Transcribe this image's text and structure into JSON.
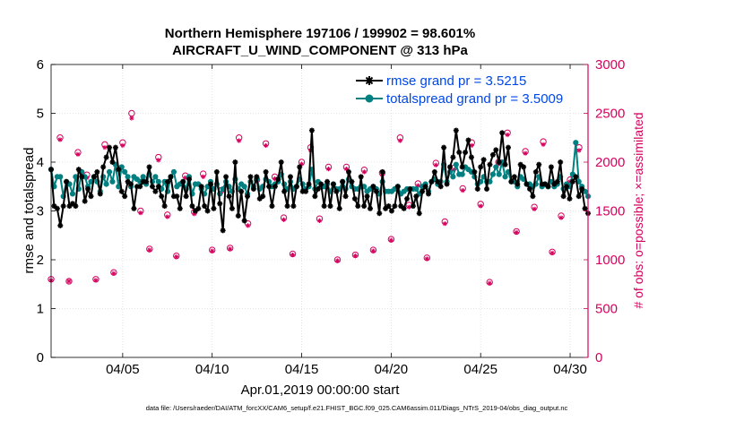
{
  "chart_data": {
    "type": "line",
    "title": "Northern Hemisphere 197106 / 199902 = 98.601%",
    "subtitle": "AIRCRAFT_U_WIND_COMPONENT @ 313 hPa",
    "xlabel": "Apr.01,2019 00:00:00 start",
    "ylabel": "rmse and totalspread",
    "y2label": "# of obs: o=possible; ×=assimilated",
    "footer": "data file: /Users/raeder/DAI/ATM_forcXX/CAM6_setup/f.e21.FHIST_BGC.f09_025.CAM6assim.011/Diags_NTrS_2019-04/obs_diag_output.nc",
    "xlim": [
      1,
      31
    ],
    "ylim": [
      0,
      6
    ],
    "y2lim": [
      0,
      3000
    ],
    "xticks": [
      5,
      10,
      15,
      20,
      25,
      30
    ],
    "xtick_labels": [
      "04/05",
      "04/10",
      "04/15",
      "04/20",
      "04/25",
      "04/30"
    ],
    "yticks": [
      0,
      1,
      2,
      3,
      4,
      5,
      6
    ],
    "ytick_labels": [
      "0",
      "1",
      "2",
      "3",
      "4",
      "5",
      "6"
    ],
    "y2ticks": [
      0,
      500,
      1000,
      1500,
      2000,
      2500,
      3000
    ],
    "y2tick_labels": [
      "0",
      "500",
      "1000",
      "1500",
      "2000",
      "2500",
      "3000"
    ],
    "grid": true,
    "legend_position": "top-right",
    "series": [
      {
        "name": "rmse grand pr = 3.5215",
        "color": "#000000",
        "marker": "asterisk",
        "values": [
          3.85,
          3.1,
          3.05,
          2.7,
          3.1,
          3.6,
          3.1,
          3.15,
          3.1,
          3.85,
          3.7,
          3.2,
          3.45,
          3.3,
          3.7,
          3.8,
          3.35,
          3.9,
          4.1,
          4.3,
          4.0,
          4.3,
          3.85,
          3.4,
          3.3,
          3.6,
          3.55,
          3.05,
          3.5,
          3.5,
          3.6,
          3.6,
          3.9,
          3.5,
          3.4,
          3.5,
          3.3,
          3.1,
          3.6,
          3.7,
          3.3,
          3.3,
          3.05,
          3.6,
          3.3,
          3.65,
          3.1,
          3.0,
          3.05,
          3.5,
          3.1,
          3.0,
          3.55,
          3.05,
          3.8,
          3.15,
          2.6,
          3.7,
          3.3,
          3.05,
          4.0,
          2.9,
          3.4,
          2.8,
          3.3,
          3.7,
          3.45,
          3.7,
          3.25,
          3.3,
          3.8,
          3.5,
          3.1,
          3.5,
          3.65,
          4.0,
          3.4,
          3.1,
          3.7,
          3.1,
          3.5,
          3.9,
          3.4,
          3.4,
          3.55,
          4.65,
          3.3,
          3.45,
          3.55,
          3.1,
          3.6,
          3.1,
          3.55,
          3.4,
          3.05,
          3.6,
          3.3,
          3.8,
          3.6,
          3.25,
          3.1,
          3.7,
          3.1,
          3.3,
          3.05,
          3.5,
          3.4,
          2.95,
          3.8,
          3.05,
          3.1,
          3.0,
          3.1,
          3.5,
          3.1,
          3.05,
          3.25,
          3.45,
          3.1,
          3.3,
          2.95,
          3.4,
          3.5,
          3.35,
          3.6,
          3.8,
          3.6,
          3.5,
          4.3,
          3.55,
          3.9,
          4.1,
          4.65,
          4.2,
          3.9,
          4.2,
          4.45,
          4.1,
          3.8,
          3.45,
          3.9,
          4.05,
          3.45,
          3.95,
          4.15,
          4.25,
          4.0,
          4.6,
          3.95,
          4.3,
          3.6,
          3.7,
          3.55,
          3.95,
          3.9,
          3.55,
          3.45,
          3.3,
          3.8,
          3.95,
          3.55,
          3.55,
          3.5,
          3.9,
          3.55,
          3.6,
          4.0,
          3.3,
          3.5,
          3.25,
          3.6,
          3.7,
          3.3,
          3.45,
          3.05,
          2.95
        ]
      },
      {
        "name": "totalspread grand pr = 3.5009",
        "color": "#008080",
        "marker": "circle",
        "values": [
          3.85,
          3.5,
          3.7,
          3.7,
          3.3,
          3.6,
          3.55,
          3.35,
          3.7,
          3.45,
          3.8,
          3.7,
          3.5,
          3.6,
          3.7,
          3.6,
          3.4,
          3.7,
          3.55,
          3.8,
          3.6,
          3.95,
          3.5,
          3.9,
          3.8,
          3.7,
          3.5,
          3.7,
          3.65,
          3.6,
          3.7,
          3.55,
          3.75,
          3.6,
          3.7,
          3.6,
          3.45,
          3.6,
          3.4,
          3.7,
          3.8,
          3.5,
          3.55,
          3.6,
          3.45,
          3.7,
          3.35,
          3.55,
          3.55,
          3.45,
          3.35,
          3.5,
          3.6,
          3.45,
          3.55,
          3.35,
          3.45,
          3.6,
          3.5,
          3.4,
          3.65,
          3.45,
          3.55,
          3.5,
          3.35,
          3.6,
          3.5,
          3.65,
          3.45,
          3.5,
          3.65,
          3.6,
          3.5,
          3.55,
          3.6,
          3.75,
          3.55,
          3.45,
          3.6,
          3.45,
          3.5,
          3.65,
          3.55,
          3.45,
          3.5,
          3.85,
          3.45,
          3.6,
          3.5,
          3.5,
          3.55,
          3.4,
          3.55,
          3.45,
          3.45,
          3.6,
          3.45,
          3.65,
          3.5,
          3.45,
          3.45,
          3.5,
          3.5,
          3.4,
          3.45,
          3.5,
          3.45,
          3.35,
          3.6,
          3.4,
          3.4,
          3.4,
          3.45,
          3.5,
          3.35,
          3.4,
          3.45,
          3.45,
          3.45,
          3.45,
          3.35,
          3.5,
          3.55,
          3.4,
          3.6,
          3.65,
          3.55,
          3.6,
          3.95,
          3.6,
          3.8,
          3.7,
          3.95,
          3.75,
          3.75,
          3.9,
          3.85,
          3.8,
          3.7,
          3.55,
          3.6,
          3.7,
          3.6,
          3.6,
          3.75,
          3.9,
          3.75,
          4.0,
          3.7,
          3.8,
          3.6,
          3.6,
          3.5,
          3.7,
          3.65,
          3.55,
          3.55,
          3.5,
          3.55,
          3.7,
          3.5,
          3.55,
          3.5,
          3.6,
          3.5,
          3.55,
          3.7,
          3.45,
          3.55,
          3.5,
          3.75,
          4.4,
          3.6,
          3.5,
          3.4,
          3.3
        ]
      }
    ],
    "obs_counts": {
      "color": "#d6005e",
      "description": "# of obs: o=possible; ×=assimilated",
      "x": [
        1.0,
        1.5,
        2.0,
        2.5,
        3.0,
        3.5,
        4.0,
        4.5,
        5.0,
        5.5,
        6.0,
        6.5,
        7.0,
        7.5,
        8.0,
        8.5,
        9.0,
        9.5,
        10.0,
        10.5,
        11.0,
        11.5,
        12.0,
        12.5,
        13.0,
        13.5,
        14.0,
        14.5,
        15.0,
        15.5,
        16.0,
        16.5,
        17.0,
        17.5,
        18.0,
        18.5,
        19.0,
        19.5,
        20.0,
        20.5,
        21.0,
        21.5,
        22.0,
        22.5,
        23.0,
        23.5,
        24.0,
        24.5,
        25.0,
        25.5,
        26.0,
        26.5,
        27.0,
        27.5,
        28.0,
        28.5,
        29.0,
        29.5,
        30.0,
        30.5
      ],
      "possible": [
        800,
        2250,
        780,
        2100,
        1870,
        800,
        2180,
        870,
        2200,
        2500,
        1500,
        1110,
        2050,
        1460,
        1040,
        1860,
        1490,
        1880,
        1100,
        1710,
        1120,
        2250,
        1370,
        1820,
        2190,
        1850,
        1430,
        1060,
        2000,
        2150,
        1420,
        1950,
        1000,
        1950,
        1050,
        1920,
        1100,
        1890,
        1210,
        2250,
        1560,
        1780,
        1020,
        1990,
        1390,
        1940,
        1730,
        2200,
        1570,
        770,
        2000,
        2300,
        1290,
        2110,
        1540,
        2210,
        1080,
        1450,
        1820,
        2150
      ],
      "assimilated": [
        790,
        2230,
        780,
        2080,
        1840,
        790,
        2150,
        860,
        2170,
        2450,
        1480,
        1100,
        2020,
        1440,
        1030,
        1840,
        1470,
        1850,
        1090,
        1690,
        1110,
        2220,
        1350,
        1800,
        2170,
        1830,
        1410,
        1050,
        1980,
        2120,
        1400,
        1930,
        990,
        1930,
        1040,
        1900,
        1090,
        1870,
        1200,
        2220,
        1540,
        1760,
        1010,
        1970,
        1370,
        1920,
        1710,
        2170,
        1550,
        760,
        1980,
        2280,
        1280,
        2090,
        1520,
        2180,
        1070,
        1430,
        1800,
        2120
      ]
    }
  }
}
